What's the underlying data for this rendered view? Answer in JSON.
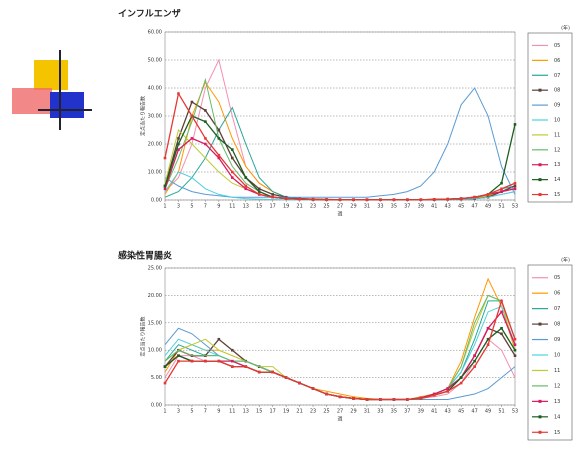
{
  "chart_data": [
    {
      "type": "line",
      "title": "インフルエンザ",
      "ylabel": "定点当たり報告数",
      "xlabel": "週",
      "legend_title": "(年)",
      "xlim": [
        1,
        53
      ],
      "xticks": [
        1,
        3,
        5,
        7,
        9,
        11,
        13,
        15,
        17,
        19,
        21,
        23,
        25,
        27,
        29,
        31,
        33,
        35,
        37,
        39,
        41,
        43,
        45,
        47,
        49,
        51,
        53
      ],
      "x": [
        1,
        3,
        5,
        7,
        9,
        11,
        13,
        15,
        17,
        19,
        21,
        23,
        25,
        27,
        29,
        31,
        33,
        35,
        37,
        39,
        41,
        43,
        45,
        47,
        49,
        51,
        53
      ],
      "ylim": [
        0,
        60
      ],
      "yticks": [
        {
          "value": 0,
          "label": "0.00"
        },
        {
          "value": 10,
          "label": "10.00"
        },
        {
          "value": 20,
          "label": "20.00"
        },
        {
          "value": 30,
          "label": "30.00"
        },
        {
          "value": 40,
          "label": "40.00"
        },
        {
          "value": 50,
          "label": "50.00"
        },
        {
          "value": 60,
          "label": "60.00"
        }
      ],
      "grid": true,
      "series": [
        {
          "name": "05",
          "color": "#f48fb1",
          "marker": false,
          "values": [
            3,
            8,
            20,
            40,
            50,
            30,
            12,
            6,
            3,
            1,
            0.5,
            0.3,
            0.2,
            0.1,
            0.1,
            0.1,
            0.1,
            0.1,
            0.1,
            0.1,
            0.1,
            0.2,
            0.3,
            0.5,
            1,
            2,
            3
          ]
        },
        {
          "name": "06",
          "color": "#ff9800",
          "marker": false,
          "values": [
            2,
            10,
            30,
            42,
            35,
            22,
            12,
            6,
            3,
            1,
            0.5,
            0.3,
            0.2,
            0.1,
            0.1,
            0.1,
            0.1,
            0.1,
            0.1,
            0.1,
            0.2,
            0.3,
            0.5,
            0.8,
            1.5,
            3,
            4
          ]
        },
        {
          "name": "07",
          "color": "#26a69a",
          "marker": false,
          "values": [
            1,
            3,
            8,
            15,
            25,
            33,
            20,
            8,
            3,
            1,
            0.5,
            0.3,
            0.2,
            0.1,
            0.1,
            0.1,
            0.1,
            0.1,
            0.1,
            0.1,
            0.2,
            0.3,
            0.5,
            1,
            2,
            4,
            5
          ]
        },
        {
          "name": "08",
          "color": "#5d4037",
          "marker": true,
          "values": [
            5,
            22,
            35,
            32,
            25,
            15,
            8,
            4,
            2,
            1,
            0.5,
            0.3,
            0.2,
            0.1,
            0.1,
            0.1,
            0.1,
            0.1,
            0.1,
            0.1,
            0.1,
            0.2,
            0.3,
            0.5,
            1,
            3,
            5
          ]
        },
        {
          "name": "09",
          "color": "#5b9bd5",
          "marker": false,
          "values": [
            8,
            5,
            3,
            2,
            1.5,
            1,
            1,
            1,
            1,
            1,
            1,
            1,
            1,
            1,
            1,
            1,
            1.5,
            2,
            3,
            5,
            10,
            20,
            34,
            40,
            30,
            12,
            2
          ]
        },
        {
          "name": "10",
          "color": "#4dd0e1",
          "marker": false,
          "values": [
            3,
            10,
            8,
            4,
            2,
            1,
            0.5,
            0.3,
            0.2,
            0.1,
            0.1,
            0.1,
            0.1,
            0.1,
            0.1,
            0.1,
            0.1,
            0.1,
            0.1,
            0.1,
            0.1,
            0.2,
            0.3,
            0.5,
            1,
            2,
            3
          ]
        },
        {
          "name": "11",
          "color": "#c0ca33",
          "marker": false,
          "values": [
            6,
            25,
            20,
            15,
            10,
            6,
            4,
            2,
            1,
            0.5,
            0.3,
            0.2,
            0.1,
            0.1,
            0.1,
            0.1,
            0.1,
            0.1,
            0.1,
            0.1,
            0.2,
            0.3,
            0.5,
            1,
            2,
            3,
            4
          ]
        },
        {
          "name": "12",
          "color": "#66bb6a",
          "marker": false,
          "values": [
            4,
            15,
            28,
            43,
            22,
            12,
            6,
            3,
            1,
            0.5,
            0.3,
            0.2,
            0.1,
            0.1,
            0.1,
            0.1,
            0.1,
            0.1,
            0.1,
            0.1,
            0.2,
            0.3,
            0.5,
            1,
            2,
            4,
            6
          ]
        },
        {
          "name": "13",
          "color": "#d81b60",
          "marker": true,
          "values": [
            4,
            18,
            22,
            20,
            15,
            8,
            4,
            2,
            1,
            0.5,
            0.3,
            0.2,
            0.1,
            0.1,
            0.1,
            0.1,
            0.1,
            0.1,
            0.1,
            0.1,
            0.2,
            0.3,
            0.5,
            1,
            2,
            3,
            4
          ]
        },
        {
          "name": "14",
          "color": "#1b5e20",
          "marker": true,
          "values": [
            5,
            20,
            30,
            28,
            22,
            18,
            8,
            3,
            1,
            0.5,
            0.3,
            0.2,
            0.1,
            0.1,
            0.1,
            0.1,
            0.1,
            0.1,
            0.1,
            0.1,
            0.2,
            0.3,
            0.5,
            1,
            2,
            6,
            27
          ]
        },
        {
          "name": "15",
          "color": "#e53935",
          "marker": true,
          "values": [
            15,
            38,
            30,
            22,
            16,
            10,
            5,
            2,
            1,
            0.5,
            0.3,
            0.2,
            0.1,
            0.1,
            0.1,
            0.1,
            0.1,
            0.1,
            0.1,
            0.1,
            0.2,
            0.3,
            0.5,
            1,
            2,
            4,
            6
          ]
        }
      ]
    },
    {
      "type": "line",
      "title": "感染性胃腸炎",
      "ylabel": "定点当たり報告数",
      "xlabel": "週",
      "legend_title": "(年)",
      "xlim": [
        1,
        53
      ],
      "xticks": [
        1,
        3,
        5,
        7,
        9,
        11,
        13,
        15,
        17,
        19,
        21,
        23,
        25,
        27,
        29,
        31,
        33,
        35,
        37,
        39,
        41,
        43,
        45,
        47,
        49,
        51,
        53
      ],
      "x": [
        1,
        3,
        5,
        7,
        9,
        11,
        13,
        15,
        17,
        19,
        21,
        23,
        25,
        27,
        29,
        31,
        33,
        35,
        37,
        39,
        41,
        43,
        45,
        47,
        49,
        51,
        53
      ],
      "ylim": [
        0,
        25
      ],
      "yticks": [
        {
          "value": 0,
          "label": "0.00"
        },
        {
          "value": 5,
          "label": "5.00"
        },
        {
          "value": 10,
          "label": "10.00"
        },
        {
          "value": 15,
          "label": "15.00"
        },
        {
          "value": 20,
          "label": "20.00"
        },
        {
          "value": 25,
          "label": "25.00"
        }
      ],
      "grid": true,
      "series": [
        {
          "name": "05",
          "color": "#f48fb1",
          "marker": false,
          "values": [
            5,
            9,
            9,
            8,
            8,
            7,
            7,
            6,
            6,
            5,
            4,
            3,
            2,
            1.5,
            1.2,
            1,
            1,
            1,
            1,
            1.2,
            1.5,
            2,
            4,
            8,
            12,
            10,
            5
          ]
        },
        {
          "name": "06",
          "color": "#ff9800",
          "marker": false,
          "values": [
            6,
            10,
            11,
            10,
            10,
            9,
            8,
            7,
            6,
            5,
            4,
            3,
            2.5,
            2,
            1.5,
            1.2,
            1,
            1,
            1,
            1.5,
            2,
            3,
            8,
            16,
            23,
            18,
            10
          ]
        },
        {
          "name": "07",
          "color": "#26a69a",
          "marker": false,
          "values": [
            8,
            11,
            10,
            9,
            9,
            8,
            8,
            7,
            6,
            5,
            4,
            3,
            2,
            1.5,
            1.2,
            1,
            1,
            1,
            1,
            1.3,
            2,
            3,
            6,
            12,
            19,
            19,
            12
          ]
        },
        {
          "name": "08",
          "color": "#5d4037",
          "marker": true,
          "values": [
            7,
            10,
            9,
            9,
            12,
            10,
            8,
            7,
            6,
            5,
            4,
            3,
            2,
            1.5,
            1.2,
            1,
            1,
            1,
            1,
            1.2,
            2,
            3,
            5,
            9,
            14,
            13,
            9
          ]
        },
        {
          "name": "09",
          "color": "#5b9bd5",
          "marker": false,
          "values": [
            11,
            14,
            13,
            11,
            9,
            8,
            7,
            6,
            6,
            5,
            4,
            3,
            2,
            1.5,
            1.2,
            1,
            1,
            1,
            1,
            1,
            1,
            1,
            1.5,
            2,
            3,
            5,
            7
          ]
        },
        {
          "name": "10",
          "color": "#4dd0e1",
          "marker": false,
          "values": [
            9,
            12,
            11,
            10,
            9,
            8,
            8,
            7,
            6,
            5,
            4,
            3,
            2,
            1.5,
            1.2,
            1,
            1,
            1,
            1,
            1.3,
            2,
            3,
            6,
            11,
            17,
            18,
            11
          ]
        },
        {
          "name": "11",
          "color": "#c0ca33",
          "marker": false,
          "values": [
            8,
            10,
            11,
            12,
            10,
            9,
            8,
            7,
            7,
            5,
            4,
            3,
            2,
            1.5,
            1.2,
            1,
            1,
            1,
            1,
            1.3,
            2,
            3,
            7,
            14,
            20,
            19,
            10
          ]
        },
        {
          "name": "12",
          "color": "#66bb6a",
          "marker": false,
          "values": [
            8,
            10,
            9,
            9,
            9,
            8,
            8,
            7,
            6,
            5,
            4,
            3,
            2,
            1.5,
            1.2,
            1,
            1,
            1,
            1,
            1.3,
            2,
            3,
            7,
            15,
            20,
            19,
            12
          ]
        },
        {
          "name": "13",
          "color": "#d81b60",
          "marker": true,
          "values": [
            7,
            9,
            8,
            8,
            8,
            8,
            7,
            6,
            6,
            5,
            4,
            3,
            2,
            1.5,
            1.2,
            1,
            1,
            1,
            1,
            1.3,
            2,
            3,
            5,
            9,
            14,
            17,
            11
          ]
        },
        {
          "name": "14",
          "color": "#1b5e20",
          "marker": true,
          "values": [
            7,
            9,
            8,
            8,
            8,
            7,
            7,
            6,
            6,
            5,
            4,
            3,
            2,
            1.5,
            1.2,
            1,
            1,
            1,
            1,
            1.2,
            1.8,
            2.5,
            5,
            8,
            12,
            14,
            10
          ]
        },
        {
          "name": "15",
          "color": "#e53935",
          "marker": true,
          "values": [
            4,
            8,
            8,
            8,
            8,
            7,
            7,
            6,
            6,
            5,
            4,
            3,
            2,
            1.5,
            1.2,
            1,
            1,
            1,
            1,
            1.2,
            1.8,
            2.5,
            4,
            7,
            11,
            19,
            12
          ]
        }
      ]
    }
  ]
}
